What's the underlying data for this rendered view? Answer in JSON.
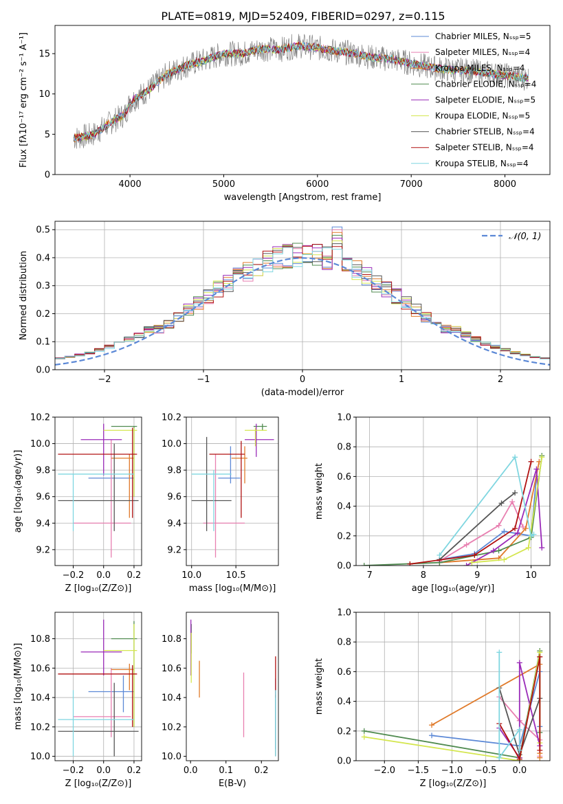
{
  "title": "PLATE=0819, MJD=52409, FIBERID=0297, z=0.115",
  "colors": {
    "chabrier_miles": "#5b88d6",
    "salpeter_miles": "#e87fb0",
    "kroupa_miles": "#e07a2a",
    "chabrier_elodie": "#4f8a4f",
    "salpeter_elodie": "#9a2ab8",
    "kroupa_elodie": "#d4e64f",
    "chabrier_stelib": "#555555",
    "salpeter_stelib": "#b01010",
    "kroupa_stelib": "#7fd6e0",
    "data": "#7f7f7f",
    "gaussian": "#5b88d6"
  },
  "chart_data": [
    {
      "id": "spectrum",
      "type": "line",
      "xlabel": "wavelength [Angstrom, rest frame]",
      "ylabel": "Flux [fλ10⁻¹⁷ erg cm⁻² s⁻¹ A⁻¹]",
      "xlim": [
        3200,
        8480
      ],
      "ylim": [
        0,
        18.5
      ],
      "xticks": [
        4000,
        5000,
        6000,
        7000,
        8000
      ],
      "yticks": [
        0,
        5,
        10,
        15
      ],
      "legend_position": "top-right",
      "legend": [
        "Chabrier MILES, Nₛₛₚ=5",
        "Salpeter MILES, Nₛₛₚ=4",
        "Kroupa MILES, Nₛₛₚ=4",
        "Chabrier ELODIE, Nₛₛₚ=4",
        "Salpeter ELODIE, Nₛₛₚ=5",
        "Kroupa ELODIE, Nₛₛₚ=5",
        "Chabrier STELIB, Nₛₛₚ=4",
        "Salpeter STELIB, Nₛₛₚ=4",
        "Kroupa STELIB, Nₛₛₚ=4"
      ],
      "continuum": [
        [
          3400,
          4.5
        ],
        [
          3600,
          4.9
        ],
        [
          3800,
          6.5
        ],
        [
          3950,
          7.5
        ],
        [
          4000,
          9.0
        ],
        [
          4200,
          10.5
        ],
        [
          4400,
          12.5
        ],
        [
          4600,
          13.5
        ],
        [
          4800,
          14.2
        ],
        [
          5000,
          15.0
        ],
        [
          5200,
          15.0
        ],
        [
          5400,
          15.6
        ],
        [
          5600,
          15.5
        ],
        [
          5800,
          16.0
        ],
        [
          6000,
          15.7
        ],
        [
          6200,
          15.3
        ],
        [
          6400,
          15.0
        ],
        [
          6600,
          14.5
        ],
        [
          6800,
          14.3
        ],
        [
          7000,
          13.8
        ],
        [
          7200,
          13.3
        ],
        [
          7400,
          13.0
        ],
        [
          7600,
          12.9
        ],
        [
          7800,
          12.6
        ],
        [
          8000,
          12.3
        ],
        [
          8200,
          12.0
        ]
      ]
    },
    {
      "id": "residuals",
      "type": "histogram",
      "xlabel": "(data-model)/error",
      "ylabel": "Normed distribution",
      "xlim": [
        -2.5,
        2.5
      ],
      "ylim": [
        0,
        0.53
      ],
      "xticks": [
        -2,
        -1,
        0,
        1,
        2
      ],
      "yticks": [
        0.0,
        0.1,
        0.2,
        0.3,
        0.4,
        0.5
      ],
      "grid": true,
      "legend": [
        "𝒩(0, 1)"
      ],
      "legend_position": "top-right",
      "bin_width": 0.1,
      "peak_bins": [
        0.3,
        0.4
      ],
      "peak_values": [
        0.51,
        0.49
      ]
    },
    {
      "id": "age-vs-Z",
      "type": "errorbar",
      "xlabel": "Z [log₁₀(Z/Z⊙)]",
      "ylabel": "age  [log₁₀(age/yr)]",
      "xlim": [
        -0.32,
        0.25
      ],
      "ylim": [
        9.08,
        10.2
      ],
      "xticks": [
        -0.2,
        0.0,
        0.2
      ],
      "yticks": [
        9.2,
        9.4,
        9.6,
        9.8,
        10.0,
        10.2
      ],
      "grid": true,
      "points": [
        {
          "c": "chabrier_miles",
          "x": 0.13,
          "y": 9.74,
          "xe": [
            -0.1,
            0.2
          ],
          "ye": [
            9.74,
            9.74
          ]
        },
        {
          "c": "salpeter_miles",
          "x": 0.05,
          "y": 9.4,
          "xe": [
            -0.2,
            0.18
          ],
          "ye": [
            9.14,
            10.03
          ]
        },
        {
          "c": "kroupa_miles",
          "x": 0.17,
          "y": 9.89,
          "xe": [
            0.05,
            0.2
          ],
          "ye": [
            9.44,
            9.92
          ]
        },
        {
          "c": "chabrier_elodie",
          "x": 0.2,
          "y": 10.13,
          "xe": [
            0.05,
            0.22
          ],
          "ye": [
            9.6,
            10.13
          ]
        },
        {
          "c": "salpeter_elodie",
          "x": 0.0,
          "y": 10.03,
          "xe": [
            -0.15,
            0.12
          ],
          "ye": [
            9.76,
            10.15
          ]
        },
        {
          "c": "kroupa_elodie",
          "x": 0.2,
          "y": 10.1,
          "xe": [
            0.0,
            0.22
          ],
          "ye": [
            9.6,
            10.12
          ]
        },
        {
          "c": "chabrier_stelib",
          "x": 0.07,
          "y": 9.57,
          "xe": [
            -0.3,
            0.23
          ],
          "ye": [
            9.34,
            10.0
          ]
        },
        {
          "c": "salpeter_stelib",
          "x": 0.19,
          "y": 9.92,
          "xe": [
            -0.3,
            0.22
          ],
          "ye": [
            9.44,
            10.12
          ]
        },
        {
          "c": "kroupa_stelib",
          "x": -0.2,
          "y": 9.77,
          "xe": [
            -0.3,
            0.2
          ],
          "ye": [
            9.34,
            9.77
          ]
        }
      ]
    },
    {
      "id": "age-vs-mass",
      "type": "errorbar",
      "xlabel": "mass [log₁₀(M/M⊙)]",
      "ylabel": "",
      "xlim": [
        9.94,
        10.98
      ],
      "ylim": [
        9.08,
        10.2
      ],
      "xticks": [
        10.0,
        10.5
      ],
      "yticks": [
        9.2,
        9.4,
        9.6,
        9.8,
        10.0,
        10.2
      ],
      "grid": true,
      "points": [
        {
          "c": "chabrier_miles",
          "x": 10.44,
          "y": 9.74,
          "xe": [
            10.3,
            10.55
          ],
          "ye": [
            9.7,
            9.98
          ]
        },
        {
          "c": "salpeter_miles",
          "x": 10.27,
          "y": 9.4,
          "xe": [
            10.13,
            10.6
          ],
          "ye": [
            9.14,
            9.92
          ]
        },
        {
          "c": "kroupa_miles",
          "x": 10.6,
          "y": 9.89,
          "xe": [
            10.45,
            10.63
          ],
          "ye": [
            9.7,
            9.98
          ]
        },
        {
          "c": "chabrier_elodie",
          "x": 10.8,
          "y": 10.13,
          "xe": [
            10.7,
            10.85
          ],
          "ye": [
            10.1,
            10.15
          ]
        },
        {
          "c": "salpeter_elodie",
          "x": 10.73,
          "y": 10.03,
          "xe": [
            10.6,
            10.93
          ],
          "ye": [
            9.9,
            10.15
          ]
        },
        {
          "c": "kroupa_elodie",
          "x": 10.72,
          "y": 10.1,
          "xe": [
            10.6,
            10.85
          ],
          "ye": [
            9.98,
            10.12
          ]
        },
        {
          "c": "chabrier_stelib",
          "x": 10.17,
          "y": 9.57,
          "xe": [
            10.0,
            10.45
          ],
          "ye": [
            9.34,
            10.05
          ]
        },
        {
          "c": "salpeter_stelib",
          "x": 10.56,
          "y": 9.92,
          "xe": [
            10.2,
            10.6
          ],
          "ye": [
            9.44,
            10.02
          ]
        },
        {
          "c": "kroupa_stelib",
          "x": 10.25,
          "y": 9.77,
          "xe": [
            10.0,
            10.45
          ],
          "ye": [
            9.34,
            9.8
          ]
        }
      ]
    },
    {
      "id": "mass-weight-vs-age",
      "type": "line",
      "xlabel": "age  [log₁₀(age/yr)]",
      "ylabel": "mass weight",
      "xlim": [
        6.75,
        10.35
      ],
      "ylim": [
        0,
        1.0
      ],
      "xticks": [
        7,
        8,
        9,
        10
      ],
      "yticks": [
        0.0,
        0.2,
        0.4,
        0.6,
        0.8,
        1.0
      ],
      "grid": true,
      "series": [
        {
          "c": "chabrier_miles",
          "x": [
            8.3,
            8.95,
            9.5,
            10.0,
            10.1
          ],
          "y": [
            0.04,
            0.08,
            0.23,
            0.2,
            0.6
          ]
        },
        {
          "c": "salpeter_miles",
          "x": [
            8.3,
            8.8,
            9.4,
            9.65,
            9.85
          ],
          "y": [
            0.03,
            0.14,
            0.27,
            0.43,
            0.26
          ]
        },
        {
          "c": "kroupa_miles",
          "x": [
            8.3,
            9.4,
            9.9,
            10.15
          ],
          "y": [
            0.02,
            0.05,
            0.25,
            0.7
          ]
        },
        {
          "c": "chabrier_elodie",
          "x": [
            6.9,
            8.3,
            9.4,
            10.0,
            10.2
          ],
          "y": [
            0.0,
            0.02,
            0.1,
            0.19,
            0.74
          ]
        },
        {
          "c": "salpeter_elodie",
          "x": [
            8.8,
            9.3,
            9.75,
            10.1,
            10.2
          ],
          "y": [
            0.0,
            0.1,
            0.22,
            0.65,
            0.12
          ]
        },
        {
          "c": "kroupa_elodie",
          "x": [
            8.9,
            9.5,
            9.95,
            10.2
          ],
          "y": [
            0.02,
            0.04,
            0.12,
            0.73
          ]
        },
        {
          "c": "chabrier_stelib",
          "x": [
            8.3,
            9.45,
            9.7
          ],
          "y": [
            0.04,
            0.42,
            0.49
          ]
        },
        {
          "c": "salpeter_stelib",
          "x": [
            7.75,
            8.95,
            9.7,
            10.0
          ],
          "y": [
            0.01,
            0.07,
            0.25,
            0.7
          ]
        },
        {
          "c": "kroupa_stelib",
          "x": [
            8.3,
            9.7,
            10.0,
            10.05
          ],
          "y": [
            0.07,
            0.73,
            0.2,
            0.21
          ]
        }
      ]
    },
    {
      "id": "mass-vs-Z",
      "type": "errorbar",
      "xlabel": "Z [log₁₀(Z/Z⊙)]",
      "ylabel": "mass [log₁₀(M/M⊙)]",
      "xlim": [
        -0.32,
        0.25
      ],
      "ylim": [
        9.97,
        10.98
      ],
      "xticks": [
        -0.2,
        0.0,
        0.2
      ],
      "yticks": [
        10.0,
        10.2,
        10.4,
        10.6,
        10.8
      ],
      "grid": true,
      "points": [
        {
          "c": "chabrier_miles",
          "x": 0.13,
          "y": 10.44,
          "xe": [
            -0.1,
            0.2
          ],
          "ye": [
            10.3,
            10.55
          ]
        },
        {
          "c": "salpeter_miles",
          "x": 0.05,
          "y": 10.27,
          "xe": [
            -0.2,
            0.18
          ],
          "ye": [
            10.13,
            10.6
          ]
        },
        {
          "c": "kroupa_miles",
          "x": 0.17,
          "y": 10.59,
          "xe": [
            0.05,
            0.2
          ],
          "ye": [
            10.45,
            10.63
          ]
        },
        {
          "c": "chabrier_elodie",
          "x": 0.2,
          "y": 10.8,
          "xe": [
            0.05,
            0.22
          ],
          "ye": [
            10.2,
            10.92
          ]
        },
        {
          "c": "salpeter_elodie",
          "x": 0.0,
          "y": 10.71,
          "xe": [
            -0.15,
            0.12
          ],
          "ye": [
            10.55,
            10.93
          ]
        },
        {
          "c": "kroupa_elodie",
          "x": 0.2,
          "y": 10.72,
          "xe": [
            0.0,
            0.22
          ],
          "ye": [
            10.2,
            10.9
          ]
        },
        {
          "c": "chabrier_stelib",
          "x": 0.07,
          "y": 10.17,
          "xe": [
            -0.3,
            0.23
          ],
          "ye": [
            10.0,
            10.5
          ]
        },
        {
          "c": "salpeter_stelib",
          "x": 0.19,
          "y": 10.56,
          "xe": [
            -0.3,
            0.22
          ],
          "ye": [
            10.2,
            10.62
          ]
        },
        {
          "c": "kroupa_stelib",
          "x": -0.2,
          "y": 10.25,
          "xe": [
            -0.3,
            0.2
          ],
          "ye": [
            10.0,
            10.45
          ]
        }
      ]
    },
    {
      "id": "mass-vs-EBV",
      "type": "errorbar",
      "xlabel": "E(B-V)",
      "ylabel": "",
      "xlim": [
        -0.012,
        0.248
      ],
      "ylim": [
        9.97,
        10.98
      ],
      "xticks": [
        0.0,
        0.1,
        0.2
      ],
      "yticks": [
        10.0,
        10.2,
        10.4,
        10.6,
        10.8
      ],
      "grid": false,
      "points": [
        {
          "c": "chabrier_miles",
          "x": 0.24,
          "y": 10.44,
          "xe": [
            0.24,
            0.24
          ],
          "ye": [
            10.05,
            10.53
          ]
        },
        {
          "c": "salpeter_miles",
          "x": 0.15,
          "y": 10.27,
          "xe": [
            0.15,
            0.15
          ],
          "ye": [
            10.13,
            10.57
          ]
        },
        {
          "c": "kroupa_miles",
          "x": 0.025,
          "y": 10.59,
          "xe": [
            0.025,
            0.025
          ],
          "ye": [
            10.4,
            10.65
          ]
        },
        {
          "c": "chabrier_elodie",
          "x": 0.002,
          "y": 10.8,
          "xe": [
            0.002,
            0.002
          ],
          "ye": [
            10.7,
            10.9
          ]
        },
        {
          "c": "salpeter_elodie",
          "x": 0.001,
          "y": 10.71,
          "xe": [
            0.001,
            0.001
          ],
          "ye": [
            10.55,
            10.93
          ]
        },
        {
          "c": "kroupa_elodie",
          "x": 0.002,
          "y": 10.72,
          "xe": [
            0.002,
            0.002
          ],
          "ye": [
            10.5,
            10.84
          ]
        },
        {
          "c": "chabrier_stelib",
          "x": 0.24,
          "y": 10.17,
          "xe": [
            0.24,
            0.24
          ],
          "ye": [
            10.0,
            10.42
          ]
        },
        {
          "c": "salpeter_stelib",
          "x": 0.24,
          "y": 10.56,
          "xe": [
            0.24,
            0.24
          ],
          "ye": [
            10.4,
            10.68
          ]
        },
        {
          "c": "kroupa_stelib",
          "x": 0.24,
          "y": 10.25,
          "xe": [
            0.24,
            0.24
          ],
          "ye": [
            10.0,
            10.45
          ]
        }
      ]
    },
    {
      "id": "mass-weight-vs-Z",
      "type": "line",
      "xlabel": "Z [log₁₀(Z/Z⊙)]",
      "ylabel": "mass weight",
      "xlim": [
        -2.42,
        0.45
      ],
      "ylim": [
        0,
        1.0
      ],
      "xticks": [
        -2.0,
        -1.5,
        -1.0,
        -0.5,
        0.0
      ],
      "yticks": [
        0.0,
        0.2,
        0.4,
        0.6,
        0.8,
        1.0
      ],
      "grid": true,
      "series": [
        {
          "c": "chabrier_miles",
          "x": [
            -1.3,
            0.0,
            0.3,
            0.3
          ],
          "y": [
            0.17,
            0.1,
            0.6,
            0.23
          ]
        },
        {
          "c": "salpeter_miles",
          "x": [
            -0.3,
            0.0,
            0.3,
            0.3
          ],
          "y": [
            0.43,
            0.27,
            0.14,
            0.03
          ]
        },
        {
          "c": "kroupa_miles",
          "x": [
            -1.3,
            0.3,
            0.3,
            0.3
          ],
          "y": [
            0.24,
            0.65,
            0.05,
            0.02
          ]
        },
        {
          "c": "chabrier_elodie",
          "x": [
            -2.3,
            0.0,
            0.3,
            0.3
          ],
          "y": [
            0.2,
            0.02,
            0.74,
            0.19
          ]
        },
        {
          "c": "salpeter_elodie",
          "x": [
            -0.3,
            0.0,
            0.0,
            0.3
          ],
          "y": [
            0.22,
            0.02,
            0.66,
            0.1
          ]
        },
        {
          "c": "kroupa_elodie",
          "x": [
            -2.3,
            0.0,
            0.3,
            0.3
          ],
          "y": [
            0.16,
            0.0,
            0.73,
            0.12
          ]
        },
        {
          "c": "chabrier_stelib",
          "x": [
            -0.3,
            0.0,
            0.3
          ],
          "y": [
            0.49,
            0.04,
            0.42
          ]
        },
        {
          "c": "salpeter_stelib",
          "x": [
            -0.3,
            0.0,
            0.3,
            0.3
          ],
          "y": [
            0.25,
            0.01,
            0.7,
            0.07
          ]
        },
        {
          "c": "kroupa_stelib",
          "x": [
            -0.3,
            -0.3,
            0.0,
            0.0
          ],
          "y": [
            0.73,
            0.02,
            0.21,
            0.07
          ]
        }
      ]
    }
  ]
}
